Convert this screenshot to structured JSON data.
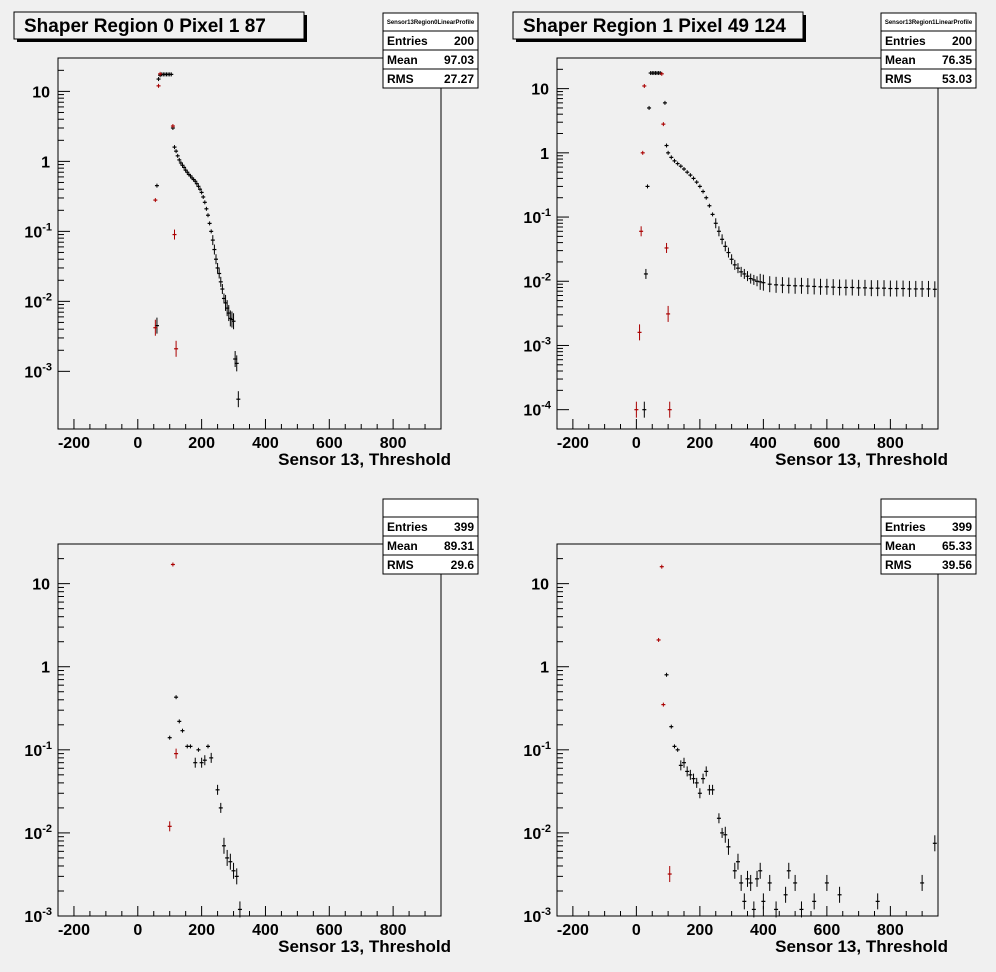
{
  "chart_data": [
    {
      "type": "scatter",
      "title": "Shaper Region 0 Pixel 1 87",
      "stats": {
        "name": "Sensor13Region0LinearProfile",
        "entries_label": "Entries",
        "entries": "200",
        "mean_label": "Mean",
        "mean": "97.03",
        "rms_label": "RMS",
        "rms": "27.27"
      },
      "xlabel": "Sensor 13, Threshold",
      "xlim": [
        -250,
        950
      ],
      "ylim": [
        0.00015,
        30
      ],
      "yscale": "log",
      "xticks": [
        "-200",
        "0",
        "200",
        "400",
        "600",
        "800"
      ],
      "yticks": [
        "10^-3",
        "10^-2",
        "10^-1",
        "1",
        "10"
      ],
      "series": [
        {
          "color": "#000000",
          "points": [
            [
              60,
              0.45
            ],
            [
              60,
              0.0045
            ],
            [
              65,
              15
            ],
            [
              70,
              17
            ],
            [
              75,
              17.5
            ],
            [
              80,
              17.5
            ],
            [
              85,
              17.5
            ],
            [
              90,
              17.5
            ],
            [
              95,
              17.5
            ],
            [
              100,
              17.5
            ],
            [
              105,
              17.5
            ],
            [
              110,
              3
            ],
            [
              115,
              1.6
            ],
            [
              120,
              1.4
            ],
            [
              125,
              1.2
            ],
            [
              130,
              1.05
            ],
            [
              135,
              0.95
            ],
            [
              140,
              0.88
            ],
            [
              145,
              0.82
            ],
            [
              150,
              0.75
            ],
            [
              155,
              0.7
            ],
            [
              160,
              0.65
            ],
            [
              165,
              0.62
            ],
            [
              170,
              0.58
            ],
            [
              175,
              0.55
            ],
            [
              180,
              0.52
            ],
            [
              185,
              0.48
            ],
            [
              190,
              0.44
            ],
            [
              195,
              0.4
            ],
            [
              200,
              0.36
            ],
            [
              205,
              0.31
            ],
            [
              210,
              0.26
            ],
            [
              215,
              0.21
            ],
            [
              220,
              0.17
            ],
            [
              225,
              0.13
            ],
            [
              230,
              0.1
            ],
            [
              235,
              0.075
            ],
            [
              240,
              0.055
            ],
            [
              245,
              0.04
            ],
            [
              250,
              0.03
            ],
            [
              255,
              0.025
            ],
            [
              260,
              0.019
            ],
            [
              265,
              0.015
            ],
            [
              270,
              0.011
            ],
            [
              275,
              0.0095
            ],
            [
              280,
              0.008
            ],
            [
              285,
              0.0068
            ],
            [
              290,
              0.0057
            ],
            [
              295,
              0.0055
            ],
            [
              300,
              0.0052
            ],
            [
              305,
              0.0015
            ],
            [
              310,
              0.0013
            ],
            [
              315,
              0.0004
            ]
          ]
        },
        {
          "color": "#aa0000",
          "points": [
            [
              55,
              0.28
            ],
            [
              55,
              0.0042
            ],
            [
              65,
              12
            ],
            [
              70,
              17.8
            ],
            [
              110,
              3.2
            ],
            [
              115,
              0.09
            ],
            [
              120,
              0.0021
            ]
          ]
        }
      ]
    },
    {
      "type": "scatter",
      "title": "Shaper Region 1 Pixel 49 124",
      "stats": {
        "name": "Sensor13Region1LinearProfile",
        "entries_label": "Entries",
        "entries": "200",
        "mean_label": "Mean",
        "mean": "76.35",
        "rms_label": "RMS",
        "rms": "53.03"
      },
      "xlabel": "Sensor 13, Threshold",
      "xlim": [
        -250,
        950
      ],
      "ylim": [
        5e-05,
        30
      ],
      "yscale": "log",
      "xticks": [
        "-200",
        "0",
        "200",
        "400",
        "600",
        "800"
      ],
      "yticks": [
        "10^-4",
        "10^-3",
        "10^-2",
        "10^-1",
        "1",
        "10"
      ],
      "series": [
        {
          "color": "#000000",
          "points": [
            [
              25,
              0.0001
            ],
            [
              30,
              0.013
            ],
            [
              35,
              0.3
            ],
            [
              40,
              5
            ],
            [
              45,
              17.5
            ],
            [
              50,
              17.5
            ],
            [
              55,
              17.5
            ],
            [
              60,
              17.5
            ],
            [
              65,
              17.5
            ],
            [
              70,
              17.5
            ],
            [
              75,
              17.5
            ],
            [
              90,
              6
            ],
            [
              95,
              1.3
            ],
            [
              100,
              1.0
            ],
            [
              110,
              0.85
            ],
            [
              120,
              0.75
            ],
            [
              130,
              0.68
            ],
            [
              140,
              0.62
            ],
            [
              150,
              0.56
            ],
            [
              160,
              0.5
            ],
            [
              170,
              0.45
            ],
            [
              180,
              0.4
            ],
            [
              190,
              0.35
            ],
            [
              200,
              0.3
            ],
            [
              210,
              0.25
            ],
            [
              220,
              0.2
            ],
            [
              230,
              0.15
            ],
            [
              240,
              0.11
            ],
            [
              250,
              0.08
            ],
            [
              260,
              0.06
            ],
            [
              270,
              0.045
            ],
            [
              280,
              0.035
            ],
            [
              290,
              0.028
            ],
            [
              300,
              0.022
            ],
            [
              310,
              0.018
            ],
            [
              320,
              0.016
            ],
            [
              330,
              0.014
            ],
            [
              340,
              0.013
            ],
            [
              350,
              0.012
            ],
            [
              360,
              0.011
            ],
            [
              370,
              0.0105
            ],
            [
              380,
              0.01
            ],
            [
              390,
              0.0098
            ],
            [
              400,
              0.0095
            ],
            [
              420,
              0.009
            ],
            [
              440,
              0.0088
            ],
            [
              460,
              0.0087
            ],
            [
              480,
              0.0086
            ],
            [
              500,
              0.0085
            ],
            [
              520,
              0.0085
            ],
            [
              540,
              0.0084
            ],
            [
              560,
              0.0083
            ],
            [
              580,
              0.0082
            ],
            [
              600,
              0.0082
            ],
            [
              620,
              0.0081
            ],
            [
              640,
              0.008
            ],
            [
              660,
              0.008
            ],
            [
              680,
              0.008
            ],
            [
              700,
              0.0079
            ],
            [
              720,
              0.0079
            ],
            [
              740,
              0.0078
            ],
            [
              760,
              0.0078
            ],
            [
              780,
              0.0078
            ],
            [
              800,
              0.0077
            ],
            [
              820,
              0.0077
            ],
            [
              840,
              0.0077
            ],
            [
              860,
              0.0076
            ],
            [
              880,
              0.0076
            ],
            [
              900,
              0.0076
            ],
            [
              920,
              0.0076
            ],
            [
              940,
              0.0075
            ]
          ]
        },
        {
          "color": "#aa0000",
          "points": [
            [
              0,
              0.0001
            ],
            [
              10,
              0.0016
            ],
            [
              15,
              0.06
            ],
            [
              20,
              1.0
            ],
            [
              25,
              11
            ],
            [
              80,
              17
            ],
            [
              85,
              2.8
            ],
            [
              95,
              0.033
            ],
            [
              100,
              0.0031
            ],
            [
              105,
              0.0001
            ]
          ]
        }
      ]
    },
    {
      "type": "scatter",
      "title": "",
      "stats": {
        "name": "",
        "entries_label": "Entries",
        "entries": "399",
        "mean_label": "Mean",
        "mean": "89.31",
        "rms_label": "RMS",
        "rms": "29.6"
      },
      "xlabel": "Sensor 13, Threshold",
      "xlim": [
        -250,
        950
      ],
      "ylim": [
        0.001,
        30
      ],
      "yscale": "log",
      "xticks": [
        "-200",
        "0",
        "200",
        "400",
        "600",
        "800"
      ],
      "yticks": [
        "10^-3",
        "10^-2",
        "10^-1",
        "1",
        "10"
      ],
      "series": [
        {
          "color": "#000000",
          "points": [
            [
              100,
              0.14
            ],
            [
              120,
              0.43
            ],
            [
              130,
              0.22
            ],
            [
              140,
              0.17
            ],
            [
              155,
              0.11
            ],
            [
              165,
              0.11
            ],
            [
              180,
              0.07
            ],
            [
              190,
              0.1
            ],
            [
              200,
              0.07
            ],
            [
              210,
              0.075
            ],
            [
              220,
              0.11
            ],
            [
              230,
              0.08
            ],
            [
              250,
              0.033
            ],
            [
              260,
              0.02
            ],
            [
              270,
              0.007
            ],
            [
              280,
              0.005
            ],
            [
              290,
              0.0045
            ],
            [
              300,
              0.0035
            ],
            [
              310,
              0.003
            ],
            [
              320,
              0.0012
            ]
          ]
        },
        {
          "color": "#aa0000",
          "points": [
            [
              100,
              0.012
            ],
            [
              110,
              17
            ],
            [
              120,
              0.09
            ]
          ]
        }
      ]
    },
    {
      "type": "scatter",
      "title": "",
      "stats": {
        "name": "",
        "entries_label": "Entries",
        "entries": "399",
        "mean_label": "Mean",
        "mean": "65.33",
        "rms_label": "RMS",
        "rms": "39.56"
      },
      "xlabel": "Sensor 13, Threshold",
      "xlim": [
        -250,
        950
      ],
      "ylim": [
        0.001,
        30
      ],
      "yscale": "log",
      "xticks": [
        "-200",
        "0",
        "200",
        "400",
        "600",
        "800"
      ],
      "yticks": [
        "10^-3",
        "10^-2",
        "10^-1",
        "1",
        "10"
      ],
      "series": [
        {
          "color": "#000000",
          "points": [
            [
              95,
              0.8
            ],
            [
              110,
              0.19
            ],
            [
              120,
              0.11
            ],
            [
              130,
              0.1
            ],
            [
              140,
              0.065
            ],
            [
              150,
              0.07
            ],
            [
              160,
              0.055
            ],
            [
              170,
              0.05
            ],
            [
              180,
              0.045
            ],
            [
              190,
              0.04
            ],
            [
              200,
              0.03
            ],
            [
              210,
              0.045
            ],
            [
              220,
              0.055
            ],
            [
              230,
              0.033
            ],
            [
              240,
              0.033
            ],
            [
              260,
              0.015
            ],
            [
              270,
              0.01
            ],
            [
              280,
              0.0095
            ],
            [
              290,
              0.0068
            ],
            [
              310,
              0.0035
            ],
            [
              320,
              0.0045
            ],
            [
              330,
              0.0025
            ],
            [
              340,
              0.0015
            ],
            [
              350,
              0.0028
            ],
            [
              360,
              0.0025
            ],
            [
              370,
              0.0012
            ],
            [
              380,
              0.0028
            ],
            [
              390,
              0.0035
            ],
            [
              400,
              0.0015
            ],
            [
              420,
              0.0025
            ],
            [
              440,
              0.0012
            ],
            [
              470,
              0.0018
            ],
            [
              480,
              0.0035
            ],
            [
              500,
              0.0025
            ],
            [
              520,
              0.0012
            ],
            [
              560,
              0.0015
            ],
            [
              600,
              0.0025
            ],
            [
              640,
              0.0018
            ],
            [
              760,
              0.0015
            ],
            [
              900,
              0.0025
            ],
            [
              940,
              0.0075
            ]
          ]
        },
        {
          "color": "#aa0000",
          "points": [
            [
              70,
              2.1
            ],
            [
              80,
              16
            ],
            [
              85,
              0.35
            ],
            [
              105,
              0.0032
            ]
          ]
        }
      ]
    }
  ]
}
